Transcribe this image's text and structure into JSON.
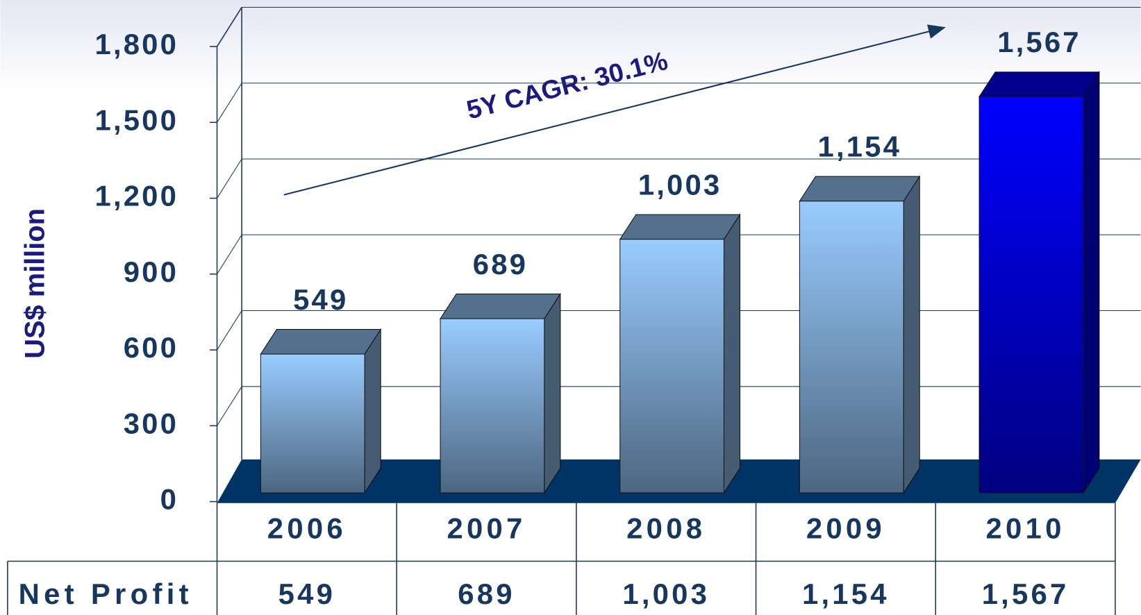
{
  "chart_data": {
    "type": "bar",
    "y_label": "US$ million",
    "annotation": "5Y CAGR: 30.1%",
    "categories": [
      "2006",
      "2007",
      "2008",
      "2009",
      "2010"
    ],
    "values": [
      549,
      689,
      1003,
      1154,
      1567
    ],
    "value_labels": [
      "549",
      "689",
      "1,003",
      "1,154",
      "1,567"
    ],
    "colors": [
      "#99ccff",
      "#99ccff",
      "#99ccff",
      "#99ccff",
      "#0000ff"
    ],
    "ylim": [
      0,
      1800
    ],
    "yticks": [
      0,
      300,
      600,
      900,
      {
        "value": 1200,
        "label": "1,200"
      },
      {
        "value": 1500,
        "label": "1,500"
      },
      {
        "value": 1800,
        "label": "1,800"
      }
    ],
    "grid": true,
    "row_label": "Net Profit"
  }
}
